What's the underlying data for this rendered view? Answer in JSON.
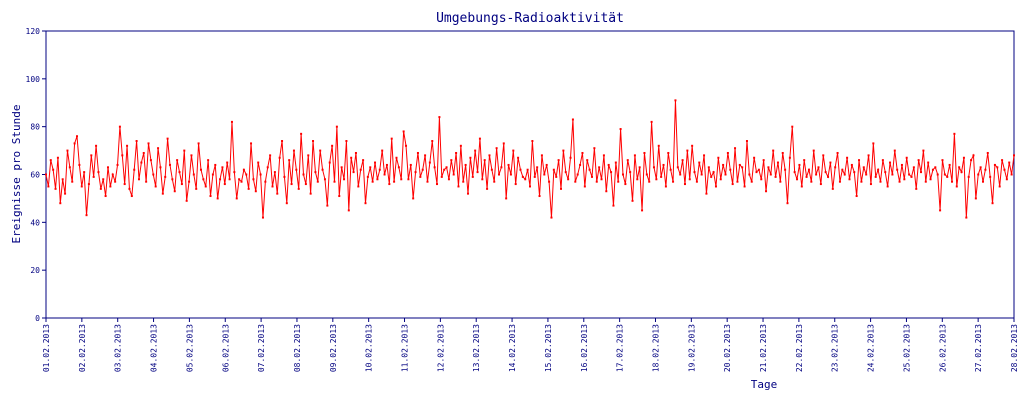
{
  "chart_data": {
    "type": "line",
    "title": "Umgebungs-Radioaktivität",
    "xlabel": "Tage",
    "ylabel": "Ereignisse pro Stunde",
    "ylim": [
      0,
      120
    ],
    "yticks": [
      0,
      20,
      40,
      60,
      80,
      100,
      120
    ],
    "x_tick_labels": [
      "01.02.2013",
      "02.02.2013",
      "03.02.2013",
      "04.02.2013",
      "05.02.2013",
      "06.02.2013",
      "07.02.2013",
      "08.02.2013",
      "09.02.2013",
      "10.02.2013",
      "11.02.2013",
      "12.02.2013",
      "13.02.2013",
      "14.02.2013",
      "15.02.2013",
      "16.02.2013",
      "17.02.2013",
      "18.02.2013",
      "19.02.2013",
      "20.02.2013",
      "21.02.2013",
      "22.02.2013",
      "23.02.2013",
      "24.02.2013",
      "25.02.2013",
      "26.02.2013",
      "27.02.2013",
      "28.02.2013"
    ],
    "grid": false,
    "series": [
      {
        "color": "#ff0000",
        "values": [
          60,
          55,
          66,
          62,
          54,
          67,
          48,
          58,
          52,
          70,
          63,
          57,
          73,
          76,
          64,
          55,
          61,
          43,
          56,
          68,
          59,
          72,
          61,
          54,
          58,
          51,
          63,
          55,
          60,
          57,
          64,
          80,
          68,
          56,
          72,
          54,
          51,
          62,
          74,
          58,
          65,
          69,
          57,
          73,
          66,
          60,
          55,
          71,
          63,
          52,
          59,
          75,
          64,
          58,
          53,
          66,
          61,
          56,
          70,
          49,
          57,
          68,
          60,
          54,
          73,
          62,
          58,
          55,
          66,
          51,
          60,
          64,
          50,
          58,
          63,
          56,
          65,
          58,
          82,
          61,
          50,
          58,
          57,
          62,
          60,
          54,
          73,
          58,
          53,
          65,
          60,
          42,
          57,
          63,
          68,
          55,
          61,
          52,
          67,
          74,
          59,
          48,
          66,
          56,
          70,
          62,
          54,
          77,
          60,
          56,
          68,
          52,
          74,
          61,
          57,
          70,
          62,
          58,
          47,
          65,
          72,
          57,
          80,
          51,
          63,
          58,
          74,
          45,
          67,
          61,
          69,
          55,
          62,
          66,
          48,
          59,
          63,
          57,
          65,
          58,
          62,
          70,
          60,
          64,
          56,
          75,
          57,
          67,
          63,
          58,
          78,
          72,
          58,
          64,
          50,
          61,
          69,
          59,
          62,
          68,
          57,
          65,
          74,
          63,
          56,
          84,
          59,
          62,
          63,
          58,
          66,
          60,
          69,
          55,
          72,
          57,
          64,
          52,
          67,
          59,
          70,
          61,
          75,
          58,
          66,
          54,
          68,
          62,
          57,
          71,
          60,
          63,
          73,
          50,
          64,
          60,
          70,
          56,
          67,
          62,
          59,
          58,
          62,
          55,
          74,
          59,
          63,
          51,
          68,
          60,
          64,
          57,
          42,
          62,
          59,
          66,
          54,
          70,
          61,
          58,
          67,
          83,
          57,
          60,
          64,
          69,
          55,
          66,
          62,
          59,
          71,
          57,
          63,
          58,
          68,
          53,
          64,
          61,
          47,
          65,
          57,
          79,
          60,
          56,
          66,
          61,
          49,
          68,
          58,
          63,
          45,
          69,
          60,
          57,
          82,
          63,
          58,
          72,
          59,
          64,
          55,
          69,
          62,
          57,
          91,
          63,
          60,
          66,
          56,
          70,
          58,
          72,
          61,
          57,
          65,
          60,
          68,
          52,
          63,
          59,
          61,
          55,
          67,
          58,
          64,
          60,
          69,
          62,
          56,
          71,
          57,
          64,
          63,
          55,
          74,
          60,
          57,
          67,
          61,
          62,
          58,
          66,
          53,
          63,
          60,
          70,
          59,
          65,
          57,
          69,
          62,
          48,
          67,
          80,
          61,
          58,
          64,
          55,
          66,
          59,
          62,
          57,
          70,
          60,
          63,
          56,
          68,
          61,
          59,
          65,
          54,
          63,
          69,
          57,
          62,
          60,
          67,
          58,
          64,
          61,
          51,
          66,
          57,
          63,
          60,
          68,
          56,
          73,
          59,
          62,
          57,
          66,
          61,
          55,
          65,
          60,
          70,
          62,
          57,
          64,
          58,
          67,
          60,
          59,
          63,
          54,
          66,
          61,
          70,
          57,
          65,
          58,
          62,
          63,
          60,
          45,
          66,
          60,
          59,
          64,
          57,
          77,
          55,
          63,
          61,
          67,
          42,
          59,
          66,
          68,
          50,
          60,
          63,
          57,
          62,
          69,
          59,
          48,
          64,
          63,
          55,
          66,
          62,
          58,
          65,
          60,
          68
        ]
      }
    ]
  }
}
